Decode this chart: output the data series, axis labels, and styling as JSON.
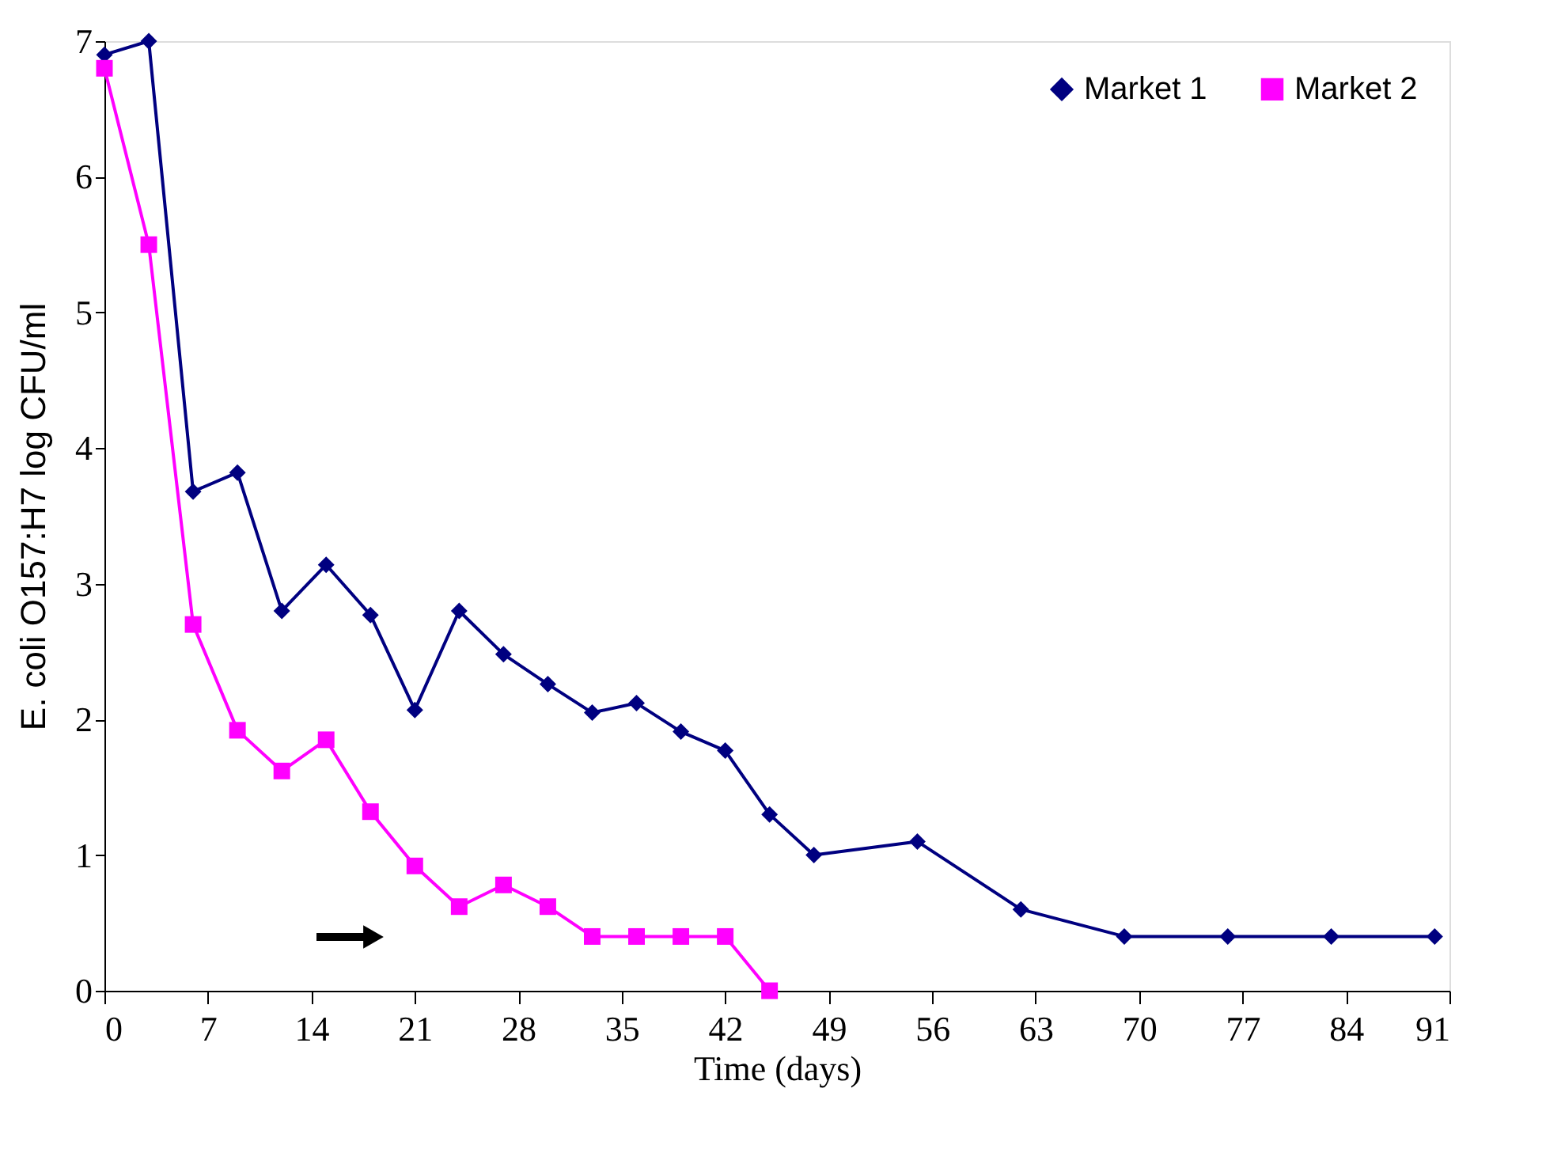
{
  "chart_data": {
    "type": "line",
    "xlabel": "Time (days)",
    "ylabel": "E. coli O157:H7 log CFU/ml",
    "xlim": [
      0,
      91
    ],
    "xticks": [
      0,
      7,
      14,
      21,
      28,
      35,
      42,
      49,
      56,
      63,
      70,
      77,
      84,
      91
    ],
    "ylim": [
      0,
      7
    ],
    "yticks": [
      0,
      1,
      2,
      3,
      4,
      5,
      6,
      7
    ],
    "grid": false,
    "legend": "top right",
    "series": [
      {
        "name": "Market 1",
        "color": "#000080",
        "marker": "diamond",
        "x": [
          0,
          3,
          6,
          9,
          12,
          15,
          18,
          21,
          24,
          27,
          30,
          33,
          36,
          39,
          42,
          45,
          48,
          55,
          62,
          69,
          76,
          83,
          90
        ],
        "values": [
          6.9,
          7.0,
          3.68,
          3.82,
          2.8,
          3.14,
          2.77,
          2.07,
          2.8,
          2.48,
          2.26,
          2.05,
          2.12,
          1.91,
          1.77,
          1.3,
          1.0,
          1.1,
          0.6,
          0.4,
          0.4,
          0.4,
          0.4
        ]
      },
      {
        "name": "Market 2",
        "color": "#ff00ff",
        "marker": "square",
        "x": [
          0,
          3,
          6,
          9,
          12,
          15,
          18,
          21,
          24,
          27,
          30,
          33,
          36,
          39,
          42,
          45
        ],
        "values": [
          6.8,
          5.5,
          2.7,
          1.92,
          1.62,
          1.85,
          1.32,
          0.92,
          0.62,
          0.78,
          0.62,
          0.4,
          0.4,
          0.4,
          0.4,
          0.0
        ]
      }
    ]
  }
}
